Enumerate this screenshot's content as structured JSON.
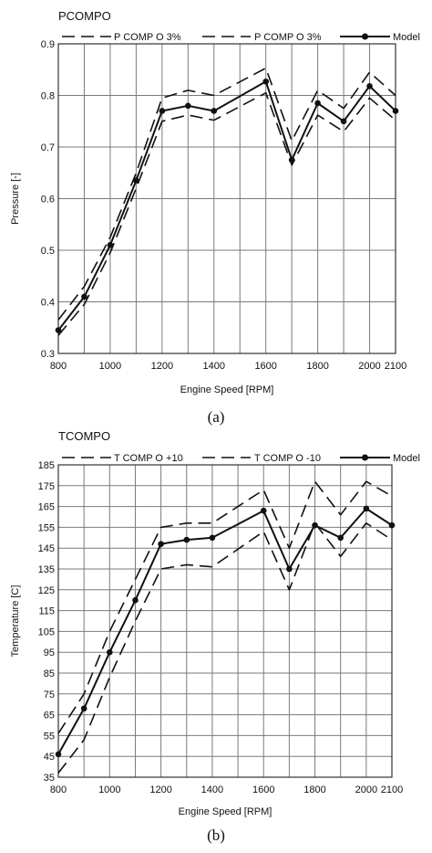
{
  "chart_data": [
    {
      "type": "line",
      "title": "PCOMPO",
      "xlabel": "Engine Speed [RPM]",
      "ylabel": "Pressure [-]",
      "caption": "(a)",
      "xlim": [
        800,
        2100
      ],
      "ylim": [
        0.3,
        0.9
      ],
      "xticks": [
        800,
        1000,
        1200,
        1400,
        1600,
        1800,
        2000,
        2100
      ],
      "xtick_labels": [
        "800",
        "1000",
        "1200",
        "1400",
        "1600",
        "1800",
        "2000",
        "2100"
      ],
      "xgrid": [
        800,
        900,
        1000,
        1100,
        1200,
        1300,
        1400,
        1500,
        1600,
        1700,
        1800,
        1900,
        2000,
        2100
      ],
      "yticks": [
        0.3,
        0.4,
        0.5,
        0.6,
        0.7,
        0.8,
        0.9
      ],
      "ytick_labels": [
        "0.3",
        "0.4",
        "0.5",
        "0.6",
        "0.7",
        "0.8",
        "0.9"
      ],
      "grid": true,
      "legend_position": "top",
      "x": [
        800,
        900,
        1000,
        1100,
        1200,
        1300,
        1400,
        1600,
        1700,
        1800,
        1900,
        2000,
        2100
      ],
      "series": [
        {
          "name": "P_COMP_O 3%",
          "style": "dashed",
          "values": [
            0.365,
            0.43,
            0.525,
            0.65,
            0.795,
            0.81,
            0.8,
            0.853,
            0.712,
            0.81,
            0.775,
            0.845,
            0.8
          ]
        },
        {
          "name": "P_COMP_O 3%",
          "style": "dashed",
          "values": [
            0.335,
            0.395,
            0.495,
            0.62,
            0.75,
            0.762,
            0.752,
            0.805,
            0.665,
            0.762,
            0.73,
            0.795,
            0.752
          ]
        },
        {
          "name": "Model",
          "style": "solid-marker",
          "values": [
            0.345,
            0.41,
            0.51,
            0.635,
            0.77,
            0.78,
            0.77,
            0.827,
            0.675,
            0.785,
            0.75,
            0.818,
            0.77
          ]
        }
      ],
      "legend_labels": [
        "P  COMP  O 3%",
        "P  COMP  O 3%",
        "Model"
      ]
    },
    {
      "type": "line",
      "title": "TCOMPO",
      "xlabel": "Engine Speed [RPM]",
      "ylabel": "Temperature [C]",
      "caption": "(b)",
      "xlim": [
        800,
        2100
      ],
      "ylim": [
        35,
        185
      ],
      "xticks": [
        800,
        1000,
        1200,
        1400,
        1600,
        1800,
        2000,
        2100
      ],
      "xtick_labels": [
        "800",
        "1000",
        "1200",
        "1400",
        "1600",
        "1800",
        "2000",
        "2100"
      ],
      "xgrid": [
        800,
        900,
        1000,
        1100,
        1200,
        1300,
        1400,
        1500,
        1600,
        1700,
        1800,
        1900,
        2000,
        2100
      ],
      "yticks": [
        35,
        45,
        55,
        65,
        75,
        85,
        95,
        105,
        115,
        125,
        135,
        145,
        155,
        165,
        175,
        185
      ],
      "ytick_labels": [
        "35",
        "45",
        "55",
        "65",
        "75",
        "85",
        "95",
        "105",
        "115",
        "125",
        "135",
        "145",
        "155",
        "165",
        "175",
        "185"
      ],
      "grid": true,
      "legend_position": "top",
      "x": [
        800,
        900,
        1000,
        1100,
        1200,
        1300,
        1400,
        1600,
        1700,
        1800,
        1900,
        2000,
        2100
      ],
      "series": [
        {
          "name": "T_COMP_O +10",
          "style": "dashed",
          "values": [
            56,
            75,
            105,
            130,
            155,
            157,
            157,
            173,
            145,
            177,
            161,
            177,
            170
          ]
        },
        {
          "name": "T_COMP_O -10",
          "style": "dashed",
          "values": [
            37,
            53,
            83,
            110,
            135,
            137,
            136,
            153,
            125,
            157,
            141,
            157,
            149
          ]
        },
        {
          "name": "Model",
          "style": "solid-marker",
          "values": [
            46,
            68,
            95,
            120,
            147,
            149,
            150,
            163,
            135,
            156,
            150,
            164,
            156
          ]
        }
      ],
      "legend_labels": [
        "T  COMP  O +10",
        "T  COMP  O -10",
        "Model"
      ]
    }
  ]
}
